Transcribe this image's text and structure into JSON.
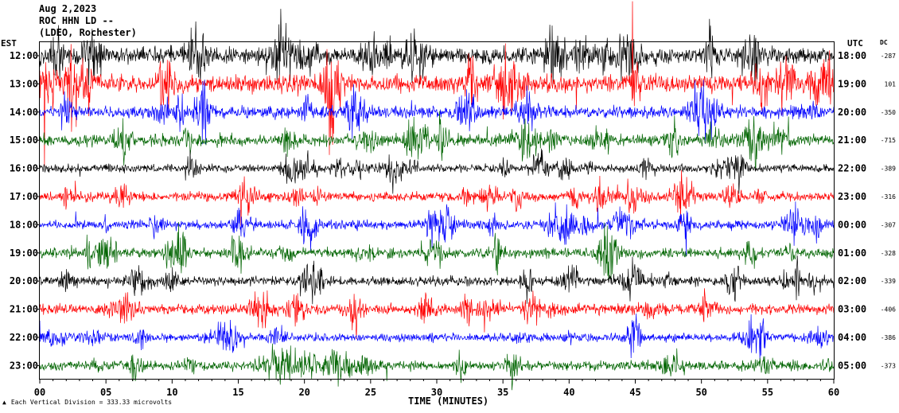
{
  "header": {
    "date": "Aug 2,2023",
    "station": "ROC HHN LD --",
    "network": "(LDEO, Rochester)"
  },
  "labels": {
    "left_tz": "EST",
    "right_tz": "UTC",
    "dc": "DC",
    "xlabel": "TIME (MINUTES)",
    "footnote_mark": "▲",
    "footnote": "Each Vertical Division = 333.33 microvolts"
  },
  "colors": {
    "trace_cycle": [
      "#000000",
      "#ff0000",
      "#0000ff",
      "#006400"
    ],
    "axis": "#000000",
    "background": "#ffffff"
  },
  "chart_data": {
    "type": "line",
    "subtype": "helicorder",
    "title": "Aug 2,2023  ROC HHN LD --  (LDEO, Rochester)",
    "xlabel": "TIME (MINUTES)",
    "xlim": [
      0,
      60
    ],
    "x_ticks": [
      "00",
      "05",
      "10",
      "15",
      "20",
      "25",
      "30",
      "35",
      "40",
      "45",
      "50",
      "55",
      "60"
    ],
    "rows": [
      {
        "est": "12:00",
        "utc": "18:00",
        "dc": "-287",
        "color": "#000000",
        "amplitude": 1.4
      },
      {
        "est": "13:00",
        "utc": "19:00",
        "dc": "101",
        "color": "#ff0000",
        "amplitude": 1.5
      },
      {
        "est": "14:00",
        "utc": "20:00",
        "dc": "-350",
        "color": "#0000ff",
        "amplitude": 1.0
      },
      {
        "est": "15:00",
        "utc": "21:00",
        "dc": "-715",
        "color": "#006400",
        "amplitude": 1.0
      },
      {
        "est": "16:00",
        "utc": "22:00",
        "dc": "-389",
        "color": "#000000",
        "amplitude": 0.7
      },
      {
        "est": "17:00",
        "utc": "23:00",
        "dc": "-316",
        "color": "#ff0000",
        "amplitude": 0.8
      },
      {
        "est": "18:00",
        "utc": "00:00",
        "dc": "-307",
        "color": "#0000ff",
        "amplitude": 0.8
      },
      {
        "est": "19:00",
        "utc": "01:00",
        "dc": "-328",
        "color": "#006400",
        "amplitude": 0.9
      },
      {
        "est": "20:00",
        "utc": "02:00",
        "dc": "-339",
        "color": "#000000",
        "amplitude": 0.8
      },
      {
        "est": "21:00",
        "utc": "03:00",
        "dc": "-406",
        "color": "#ff0000",
        "amplitude": 0.9
      },
      {
        "est": "22:00",
        "utc": "04:00",
        "dc": "-386",
        "color": "#0000ff",
        "amplitude": 0.7
      },
      {
        "est": "23:00",
        "utc": "05:00",
        "dc": "-373",
        "color": "#006400",
        "amplitude": 0.8
      }
    ]
  }
}
